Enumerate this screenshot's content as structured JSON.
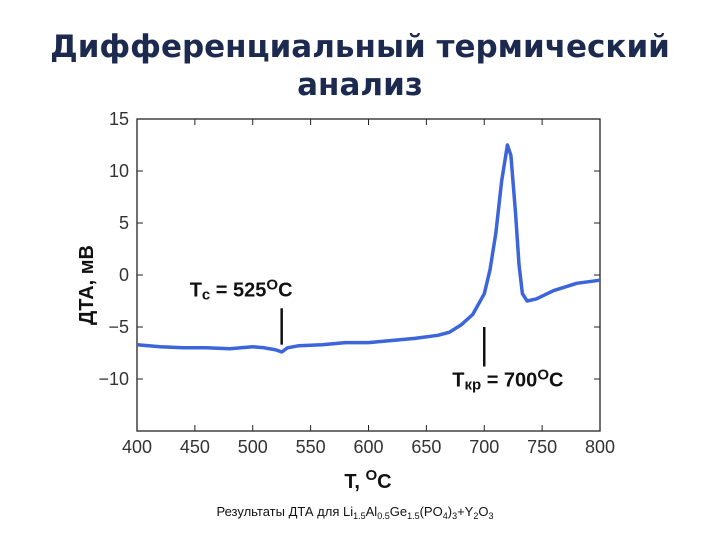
{
  "chart_data": {
    "type": "line",
    "title": [
      "Дифференциальный термический",
      "анализ"
    ],
    "x_label": [
      "T, ",
      "O",
      "C"
    ],
    "y_label": "ДТА, мВ",
    "caption": [
      "Результаты ДТА для Li",
      "1.5",
      "Al",
      "0.5",
      "Ge",
      "1.5",
      "(PO",
      "4",
      ")",
      "3",
      "+Y",
      "2",
      "O",
      "3"
    ],
    "xlim": [
      400,
      800
    ],
    "xticks": [
      400,
      450,
      500,
      550,
      600,
      650,
      700,
      750,
      800
    ],
    "ylim": [
      -15,
      15
    ],
    "yticks": [
      {
        "value": -10,
        "label": "−10"
      },
      {
        "value": -5,
        "label": "−5"
      },
      0,
      5,
      10,
      15
    ],
    "series": [
      {
        "color": "#3c64db",
        "x": [
          400,
          420,
          440,
          460,
          480,
          500,
          510,
          520,
          525,
          530,
          540,
          560,
          580,
          600,
          620,
          640,
          660,
          670,
          680,
          690,
          700,
          705,
          710,
          715,
          720,
          723,
          727,
          730,
          733,
          737,
          745,
          760,
          780,
          800
        ],
        "values": [
          -6.7,
          -6.9,
          -7.0,
          -7.0,
          -7.1,
          -6.9,
          -7.0,
          -7.2,
          -7.4,
          -7.0,
          -6.8,
          -6.7,
          -6.5,
          -6.5,
          -6.3,
          -6.1,
          -5.8,
          -5.5,
          -4.8,
          -3.8,
          -1.8,
          0.5,
          4,
          9,
          12.5,
          11.5,
          6,
          1,
          -1.8,
          -2.5,
          -2.3,
          -1.5,
          -0.8,
          -0.5
        ]
      }
    ],
    "annotations": [
      {
        "text": [
          "T",
          "c",
          " = 525",
          "O",
          "C"
        ],
        "x": 525,
        "y": [
          -3.2,
          -6.7
        ]
      },
      {
        "text": [
          "T",
          "кр",
          " = 700",
          "O",
          "C"
        ],
        "x": 700,
        "y": [
          -5,
          -8.8
        ]
      }
    ]
  }
}
